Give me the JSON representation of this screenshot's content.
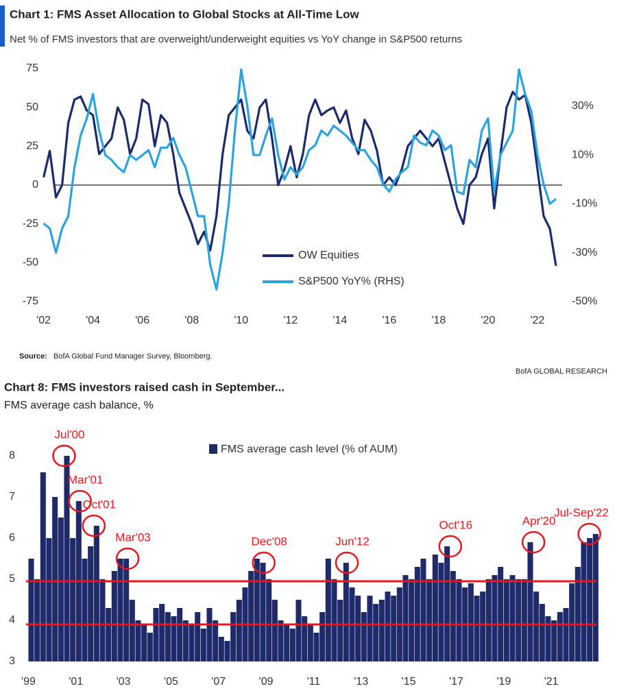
{
  "brand": "BofA GLOBAL RESEARCH",
  "chart_data": [
    {
      "type": "line",
      "title": "Chart 1: FMS Asset Allocation to Global Stocks at All-Time Low",
      "subtitle": "Net % of FMS investors that are overweight/underweight equities vs YoY change in S&P500 returns",
      "source_label": "Source:",
      "source": "BofA Global Fund Manager Survey, Bloomberg.",
      "x": [
        2002.0,
        2002.25,
        2002.5,
        2002.75,
        2003.0,
        2003.25,
        2003.5,
        2003.75,
        2004.0,
        2004.25,
        2004.5,
        2004.75,
        2005.0,
        2005.25,
        2005.5,
        2005.75,
        2006.0,
        2006.25,
        2006.5,
        2006.75,
        2007.0,
        2007.25,
        2007.5,
        2007.75,
        2008.0,
        2008.25,
        2008.5,
        2008.75,
        2009.0,
        2009.25,
        2009.5,
        2009.75,
        2010.0,
        2010.25,
        2010.5,
        2010.75,
        2011.0,
        2011.25,
        2011.5,
        2011.75,
        2012.0,
        2012.25,
        2012.5,
        2012.75,
        2013.0,
        2013.25,
        2013.5,
        2013.75,
        2014.0,
        2014.25,
        2014.5,
        2014.75,
        2015.0,
        2015.25,
        2015.5,
        2015.75,
        2016.0,
        2016.25,
        2016.5,
        2016.75,
        2017.0,
        2017.25,
        2017.5,
        2017.75,
        2018.0,
        2018.25,
        2018.5,
        2018.75,
        2019.0,
        2019.25,
        2019.5,
        2019.75,
        2020.0,
        2020.25,
        2020.5,
        2020.75,
        2021.0,
        2021.25,
        2021.5,
        2021.75,
        2022.0,
        2022.25,
        2022.5,
        2022.75
      ],
      "series": [
        {
          "name": "OW Equities",
          "color": "#1a2a6c",
          "values": [
            5,
            22,
            -8,
            0,
            40,
            55,
            57,
            48,
            45,
            20,
            25,
            30,
            50,
            42,
            20,
            30,
            55,
            52,
            25,
            45,
            40,
            20,
            -5,
            -15,
            -25,
            -38,
            -30,
            -42,
            -20,
            20,
            45,
            50,
            55,
            35,
            30,
            50,
            55,
            30,
            0,
            10,
            25,
            5,
            20,
            45,
            55,
            45,
            48,
            50,
            40,
            48,
            30,
            20,
            42,
            35,
            22,
            0,
            5,
            0,
            10,
            25,
            30,
            35,
            30,
            25,
            30,
            15,
            0,
            -15,
            -25,
            0,
            5,
            20,
            30,
            -15,
            20,
            50,
            60,
            55,
            58,
            40,
            10,
            -20,
            -28,
            -52
          ]
        },
        {
          "name": "S&P500 YoY% (RHS)",
          "color": "#2aa3e0",
          "axis": "y2",
          "values": [
            -18,
            -20,
            -30,
            -20,
            -15,
            5,
            18,
            25,
            35,
            20,
            10,
            8,
            5,
            3,
            10,
            8,
            10,
            12,
            5,
            13,
            13,
            17,
            10,
            5,
            -5,
            -15,
            -15,
            -35,
            -45,
            -30,
            -10,
            20,
            45,
            30,
            10,
            10,
            18,
            25,
            10,
            0,
            5,
            2,
            5,
            12,
            14,
            20,
            18,
            22,
            20,
            18,
            15,
            12,
            12,
            8,
            5,
            -2,
            -5,
            0,
            3,
            5,
            18,
            15,
            14,
            20,
            18,
            12,
            14,
            -5,
            -6,
            8,
            5,
            20,
            25,
            -5,
            10,
            15,
            20,
            45,
            35,
            28,
            10,
            -2,
            -10,
            -8
          ]
        }
      ],
      "xlim": [
        2001.9,
        2023
      ],
      "xticks": [
        {
          "value": 2002,
          "label": "'02"
        },
        {
          "value": 2004,
          "label": "'04"
        },
        {
          "value": 2006,
          "label": "'06"
        },
        {
          "value": 2008,
          "label": "'08"
        },
        {
          "value": 2010,
          "label": "'10"
        },
        {
          "value": 2012,
          "label": "'12"
        },
        {
          "value": 2014,
          "label": "'14"
        },
        {
          "value": 2016,
          "label": "'16"
        },
        {
          "value": 2018,
          "label": "'18"
        },
        {
          "value": 2020,
          "label": "'20"
        },
        {
          "value": 2022,
          "label": "'22"
        }
      ],
      "ylim": [
        -75,
        75
      ],
      "yticks": [
        -75,
        -50,
        -25,
        0,
        25,
        50,
        75
      ],
      "y2lim": [
        -50,
        45.4
      ],
      "y2ticks": [
        {
          "value": -50,
          "label": "-50%"
        },
        {
          "value": -30,
          "label": "-30%"
        },
        {
          "value": -10,
          "label": "-10%"
        },
        {
          "value": 10,
          "label": "10%"
        },
        {
          "value": 30,
          "label": "30%"
        }
      ]
    },
    {
      "type": "bar",
      "title": "Chart 8: FMS investors raised cash in September...",
      "subtitle": "FMS average cash balance, %",
      "series": [
        {
          "name": "FMS average cash level (% of AUM)",
          "color": "#1f2a6b",
          "x": [
            1999.0,
            1999.25,
            1999.5,
            1999.75,
            2000.0,
            2000.25,
            2000.5,
            2000.75,
            2001.0,
            2001.25,
            2001.5,
            2001.75,
            2002.0,
            2002.25,
            2002.5,
            2002.75,
            2003.0,
            2003.25,
            2003.5,
            2003.75,
            2004.0,
            2004.25,
            2004.5,
            2004.75,
            2005.0,
            2005.25,
            2005.5,
            2005.75,
            2006.0,
            2006.25,
            2006.5,
            2006.75,
            2007.0,
            2007.25,
            2007.5,
            2007.75,
            2008.0,
            2008.25,
            2008.5,
            2008.75,
            2009.0,
            2009.25,
            2009.5,
            2009.75,
            2010.0,
            2010.25,
            2010.5,
            2010.75,
            2011.0,
            2011.25,
            2011.5,
            2011.75,
            2012.0,
            2012.25,
            2012.5,
            2012.75,
            2013.0,
            2013.25,
            2013.5,
            2013.75,
            2014.0,
            2014.25,
            2014.5,
            2014.75,
            2015.0,
            2015.25,
            2015.5,
            2015.75,
            2016.0,
            2016.25,
            2016.5,
            2016.75,
            2017.0,
            2017.25,
            2017.5,
            2017.75,
            2018.0,
            2018.25,
            2018.5,
            2018.75,
            2019.0,
            2019.25,
            2019.5,
            2019.75,
            2020.0,
            2020.25,
            2020.5,
            2020.75,
            2021.0,
            2021.25,
            2021.5,
            2021.75,
            2022.0,
            2022.25,
            2022.5,
            2022.75
          ],
          "values": [
            5.5,
            5.0,
            7.6,
            6.0,
            7.0,
            6.5,
            8.0,
            6.0,
            6.9,
            5.5,
            5.8,
            6.3,
            5.0,
            4.3,
            5.2,
            5.5,
            5.5,
            4.5,
            4.0,
            3.9,
            3.7,
            4.3,
            4.4,
            4.2,
            4.1,
            4.3,
            4.0,
            3.9,
            4.2,
            3.8,
            4.3,
            4.0,
            3.6,
            3.5,
            4.2,
            4.5,
            4.8,
            5.2,
            5.5,
            5.4,
            5.0,
            4.5,
            4.0,
            3.9,
            3.8,
            4.5,
            4.1,
            3.9,
            3.7,
            4.2,
            5.5,
            5.0,
            4.5,
            5.4,
            4.8,
            4.6,
            4.2,
            4.6,
            4.4,
            4.5,
            4.7,
            4.6,
            4.8,
            5.1,
            5.0,
            5.3,
            5.5,
            5.0,
            5.6,
            5.4,
            5.8,
            5.2,
            5.0,
            4.8,
            4.9,
            4.6,
            4.7,
            5.0,
            5.1,
            5.3,
            5.0,
            5.1,
            5.0,
            5.0,
            5.9,
            4.7,
            4.4,
            4.1,
            4.0,
            4.2,
            4.3,
            4.9,
            5.3,
            5.9,
            6.0,
            6.1
          ]
        }
      ],
      "xlim": [
        1998.9,
        2022.9
      ],
      "xticks": [
        {
          "value": 1999,
          "label": "'99"
        },
        {
          "value": 2001,
          "label": "'01"
        },
        {
          "value": 2003,
          "label": "'03"
        },
        {
          "value": 2005,
          "label": "'05"
        },
        {
          "value": 2007,
          "label": "'07"
        },
        {
          "value": 2009,
          "label": "'09"
        },
        {
          "value": 2011,
          "label": "'11"
        },
        {
          "value": 2013,
          "label": "'13"
        },
        {
          "value": 2015,
          "label": "'15"
        },
        {
          "value": 2017,
          "label": "'17"
        },
        {
          "value": 2019,
          "label": "'19"
        },
        {
          "value": 2021,
          "label": "'21"
        }
      ],
      "ylim": [
        3,
        8.4
      ],
      "yticks": [
        3,
        4,
        5,
        6,
        7,
        8
      ],
      "reference_lines": [
        4.95,
        3.9
      ],
      "reference_color": "#e8151b",
      "annotation_color": "#e8151b",
      "annotations": [
        {
          "label": "Jul'00",
          "x": 2000.5,
          "y": 8.0
        },
        {
          "label": "Mar'01",
          "x": 2001.17,
          "y": 6.9
        },
        {
          "label": "Oct'01",
          "x": 2001.75,
          "y": 6.3
        },
        {
          "label": "Mar'03",
          "x": 2003.17,
          "y": 5.5
        },
        {
          "label": "Dec'08",
          "x": 2008.9,
          "y": 5.4
        },
        {
          "label": "Jun'12",
          "x": 2012.4,
          "y": 5.4
        },
        {
          "label": "Oct'16",
          "x": 2016.75,
          "y": 5.8
        },
        {
          "label": "Apr'20",
          "x": 2020.25,
          "y": 5.9
        },
        {
          "label": "Jul-Sep'22",
          "x": 2022.6,
          "y": 6.1
        }
      ]
    }
  ]
}
